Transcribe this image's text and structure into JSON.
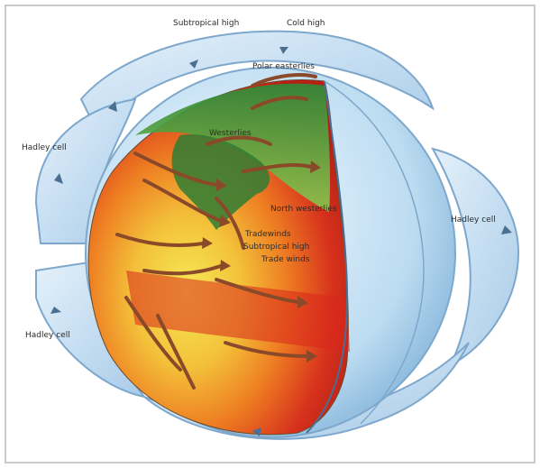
{
  "diagram": {
    "labels": {
      "subtropical_high_top": "Subtropical high",
      "cold_high": "Cold high",
      "polar_easterlies": "Polar easterlies",
      "westerlies": "Westerlies",
      "north_westerlies": "North westerlies",
      "hadley_cell_left_upper": "Hadley cell",
      "hadley_cell_left_lower": "Hadley cell",
      "hadley_cell_right": "Hadley cell",
      "tradewinds": "Tradewinds",
      "subtropical_high_mid": "Subtropical high",
      "trade_winds_b": "Trade winds"
    },
    "colors": {
      "cell_blue": "#b9d8ee",
      "cell_edge": "#6f9ec7",
      "arrow": "#8a4a2a",
      "ocean_globe": "#d8ecf8",
      "equator_red": "#d7261b",
      "tropics_orange": "#f08a1e",
      "mid_yellow": "#f3dc3a",
      "north_green": "#3f9a45"
    }
  }
}
